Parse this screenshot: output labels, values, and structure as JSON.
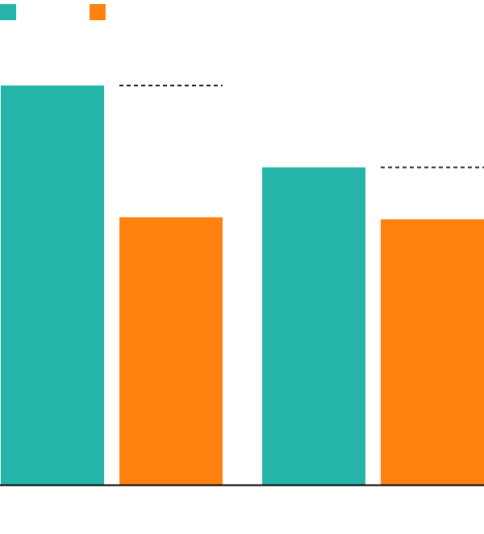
{
  "chart_data": {
    "type": "bar",
    "categories": [
      "",
      ""
    ],
    "series": [
      {
        "color": "#24b4a9",
        "values": [
          100,
          79.5
        ]
      },
      {
        "color": "#ff8210",
        "values": [
          67,
          66.5
        ]
      }
    ],
    "reference_lines": [
      {
        "category_index": 0,
        "value": 100
      },
      {
        "category_index": 1,
        "value": 79.5
      }
    ],
    "ylim": [
      0,
      100
    ],
    "grid": false,
    "legend": {
      "position": "top-left",
      "colors": [
        "#24b4a9",
        "#ff8210"
      ]
    },
    "axis_color": "#000000"
  }
}
